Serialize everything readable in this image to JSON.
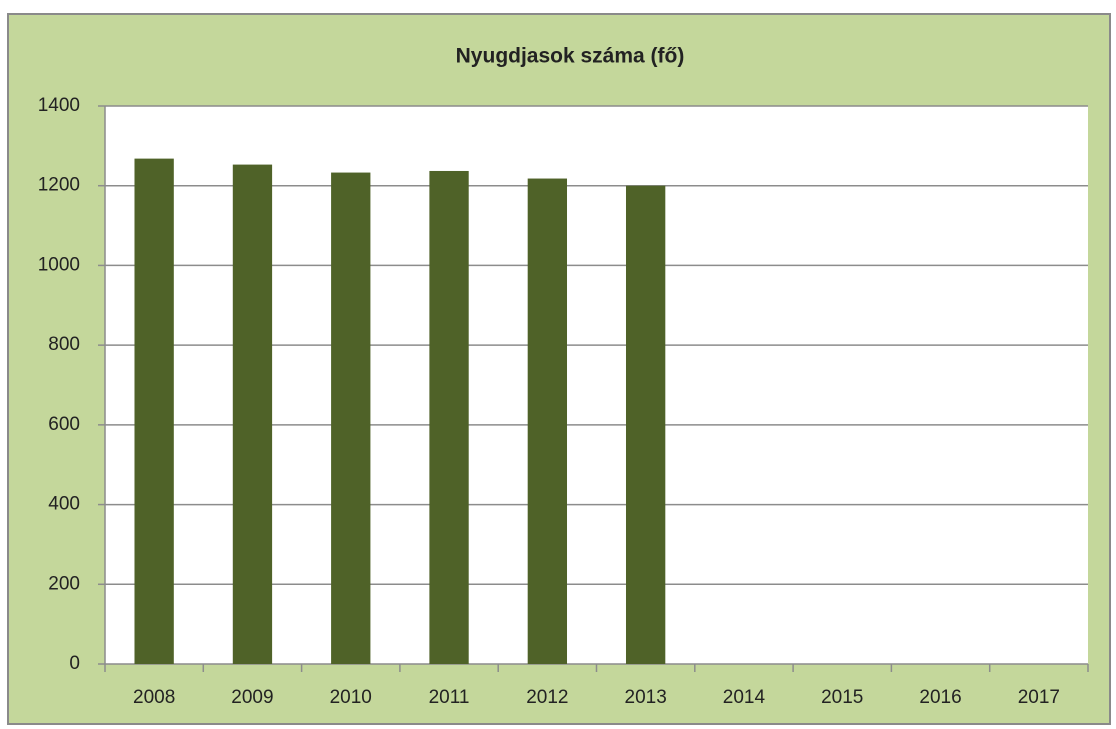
{
  "chart_data": {
    "type": "bar",
    "title": "Nyugdjasok száma (fő)",
    "categories": [
      "2008",
      "2009",
      "2010",
      "2011",
      "2012",
      "2013",
      "2014",
      "2015",
      "2016",
      "2017"
    ],
    "values": [
      1268,
      1253,
      1233,
      1237,
      1218,
      1200,
      null,
      null,
      null,
      null
    ],
    "color": "#4f6228",
    "ylim": [
      0,
      1400
    ],
    "yticks": [
      0,
      200,
      400,
      600,
      800,
      1000,
      1200,
      1400
    ],
    "grid": true
  }
}
